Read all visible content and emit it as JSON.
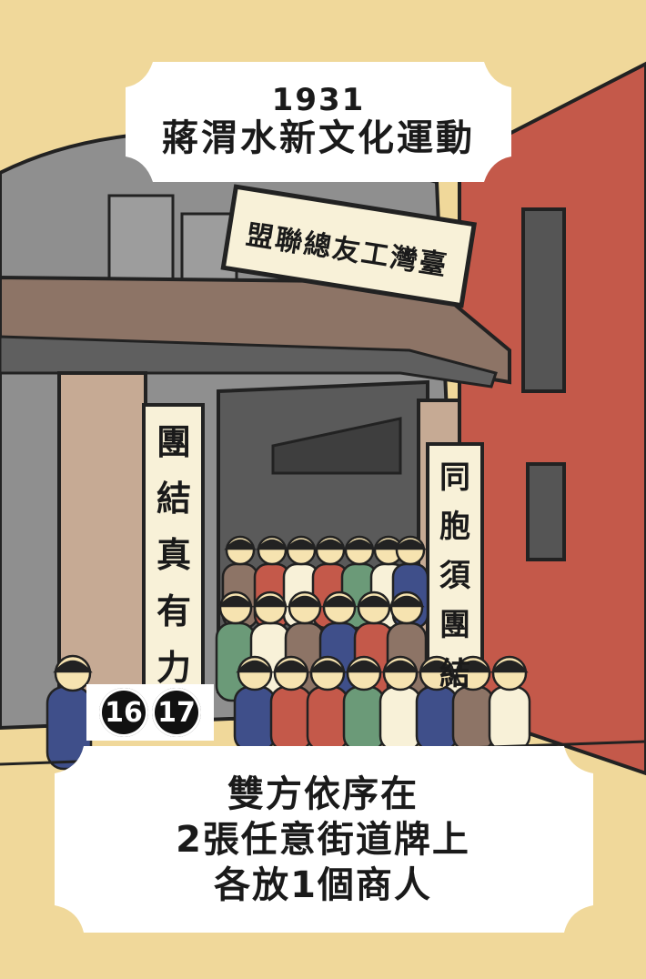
{
  "card": {
    "year": "1931",
    "title": "蔣渭水新文化運動",
    "sign_text": "臺灣工友總聯盟",
    "banner_left": [
      "團",
      "結",
      "真",
      "有",
      "力"
    ],
    "banner_right": [
      "同",
      "胞",
      "須",
      "團",
      "結"
    ],
    "card_numbers": [
      "16",
      "17"
    ],
    "description_lines": [
      "雙方依序在",
      "2張任意街道牌上",
      "各放1個商人"
    ],
    "colors": {
      "background": "#f0d89a",
      "red_building": "#c4594a",
      "panel": "#ffffff",
      "ink": "#1a1a1a"
    }
  }
}
